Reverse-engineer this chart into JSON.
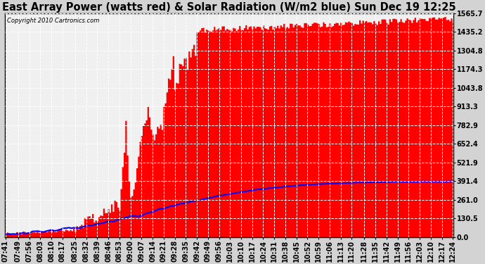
{
  "title": "East Array Power (watts red) & Solar Radiation (W/m2 blue) Sun Dec 19 12:25",
  "copyright_text": "Copyright 2010 Cartronics.com",
  "background_color": "#d3d3d3",
  "plot_bg_color": "#f0f0f0",
  "grid_color": "#ffffff",
  "yticks": [
    0.0,
    130.5,
    261.0,
    391.4,
    521.9,
    652.4,
    782.9,
    913.3,
    1043.8,
    1174.3,
    1304.8,
    1435.2,
    1565.7
  ],
  "ylim": [
    0.0,
    1565.7
  ],
  "x_labels": [
    "07:41",
    "07:49",
    "07:56",
    "08:03",
    "08:10",
    "08:17",
    "08:25",
    "08:32",
    "08:39",
    "08:46",
    "08:53",
    "09:00",
    "09:07",
    "09:14",
    "09:21",
    "09:28",
    "09:35",
    "09:42",
    "09:49",
    "09:56",
    "10:03",
    "10:10",
    "10:17",
    "10:24",
    "10:31",
    "10:38",
    "10:45",
    "10:52",
    "10:59",
    "11:06",
    "11:13",
    "11:20",
    "11:28",
    "11:35",
    "11:42",
    "11:49",
    "11:56",
    "12:03",
    "12:10",
    "12:17",
    "12:24"
  ],
  "x_tick_positions": [
    0,
    8,
    15,
    22,
    29,
    36,
    44,
    51,
    58,
    65,
    72,
    79,
    86,
    93,
    100,
    107,
    114,
    121,
    128,
    135,
    142,
    149,
    156,
    163,
    170,
    177,
    184,
    191,
    198,
    205,
    212,
    219,
    227,
    234,
    241,
    248,
    255,
    262,
    269,
    276,
    283
  ],
  "red_fill_color": "#ff0000",
  "blue_line_color": "#0000ff",
  "title_fontsize": 10.5,
  "tick_fontsize": 7,
  "n_points": 284
}
